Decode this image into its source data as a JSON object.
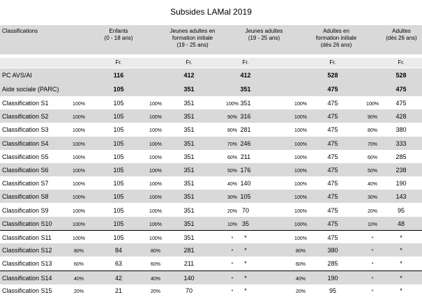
{
  "title": "Subsides LAMal 2019",
  "headers": {
    "classifications": "Classifications",
    "cols": [
      {
        "line1": "Enfants",
        "line2": "(0 - 18 ans)",
        "line3": ""
      },
      {
        "line1": "Jeunes adultes en",
        "line2": "formation initiale",
        "line3": "(19 - 25 ans)"
      },
      {
        "line1": "Jeunes adultes",
        "line2": "(19 - 25 ans)",
        "line3": ""
      },
      {
        "line1": "Adultes en",
        "line2": "formation initiale",
        "line3": "(dès 26 ans)"
      },
      {
        "line1": "Adultes",
        "line2": "(dès 26 ans)",
        "line3": ""
      }
    ]
  },
  "currency": "Fr.",
  "top_rows": [
    {
      "label": "PC AVS/AI",
      "values": [
        "116",
        "412",
        "412",
        "528",
        "528"
      ]
    },
    {
      "label": "Aide sociale (PARC)",
      "values": [
        "105",
        "351",
        "351",
        "475",
        "475"
      ]
    }
  ],
  "rows": [
    {
      "label": "Classification S1",
      "p1": "100%",
      "v1": "105",
      "p2": "100%",
      "v2": "351",
      "p3": "100%",
      "v3": "351",
      "p4": "100%",
      "v4": "475",
      "p5": "100%",
      "v5": "475"
    },
    {
      "label": "Classification S2",
      "p1": "100%",
      "v1": "105",
      "p2": "100%",
      "v2": "351",
      "p3": "90%",
      "v3": "316",
      "p4": "100%",
      "v4": "475",
      "p5": "90%",
      "v5": "428"
    },
    {
      "label": "Classification S3",
      "p1": "100%",
      "v1": "105",
      "p2": "100%",
      "v2": "351",
      "p3": "80%",
      "v3": "281",
      "p4": "100%",
      "v4": "475",
      "p5": "80%",
      "v5": "380"
    },
    {
      "label": "Classification S4",
      "p1": "100%",
      "v1": "105",
      "p2": "100%",
      "v2": "351",
      "p3": "70%",
      "v3": "246",
      "p4": "100%",
      "v4": "475",
      "p5": "70%",
      "v5": "333"
    },
    {
      "label": "Classification S5",
      "p1": "100%",
      "v1": "105",
      "p2": "100%",
      "v2": "351",
      "p3": "60%",
      "v3": "211",
      "p4": "100%",
      "v4": "475",
      "p5": "60%",
      "v5": "285"
    },
    {
      "label": "Classification S6",
      "p1": "100%",
      "v1": "105",
      "p2": "100%",
      "v2": "351",
      "p3": "50%",
      "v3": "176",
      "p4": "100%",
      "v4": "475",
      "p5": "50%",
      "v5": "238"
    },
    {
      "label": "Classification S7",
      "p1": "100%",
      "v1": "105",
      "p2": "100%",
      "v2": "351",
      "p3": "40%",
      "v3": "140",
      "p4": "100%",
      "v4": "475",
      "p5": "40%",
      "v5": "190"
    },
    {
      "label": "Classification S8",
      "p1": "100%",
      "v1": "105",
      "p2": "100%",
      "v2": "351",
      "p3": "30%",
      "v3": "105",
      "p4": "100%",
      "v4": "475",
      "p5": "30%",
      "v5": "143"
    },
    {
      "label": "Classification S9",
      "p1": "100%",
      "v1": "105",
      "p2": "100%",
      "v2": "351",
      "p3": "20%",
      "v3": "70",
      "p4": "100%",
      "v4": "475",
      "p5": "20%",
      "v5": "95"
    },
    {
      "label": "Classification S10",
      "p1": "100%",
      "v1": "105",
      "p2": "100%",
      "v2": "351",
      "p3": "10%",
      "v3": "35",
      "p4": "100%",
      "v4": "475",
      "p5": "10%",
      "v5": "48"
    },
    {
      "label": "Classification S11",
      "p1": "100%",
      "v1": "105",
      "p2": "100%",
      "v2": "351",
      "p3": "*",
      "v3": "*",
      "p4": "100%",
      "v4": "475",
      "p5": "*",
      "v5": "*"
    },
    {
      "label": "Classification S12",
      "p1": "80%",
      "v1": "84",
      "p2": "80%",
      "v2": "281",
      "p3": "*",
      "v3": "*",
      "p4": "80%",
      "v4": "380",
      "p5": "*",
      "v5": "*"
    },
    {
      "label": "Classification S13",
      "p1": "60%",
      "v1": "63",
      "p2": "60%",
      "v2": "211",
      "p3": "*",
      "v3": "*",
      "p4": "60%",
      "v4": "285",
      "p5": "*",
      "v5": "*"
    },
    {
      "label": "Classification S14",
      "p1": "40%",
      "v1": "42",
      "p2": "40%",
      "v2": "140",
      "p3": "*",
      "v3": "*",
      "p4": "40%",
      "v4": "190",
      "p5": "*",
      "v5": "*"
    },
    {
      "label": "Classification S15",
      "p1": "20%",
      "v1": "21",
      "p2": "20%",
      "v2": "70",
      "p3": "*",
      "v3": "*",
      "p4": "20%",
      "v4": "95",
      "p5": "*",
      "v5": "*"
    }
  ]
}
